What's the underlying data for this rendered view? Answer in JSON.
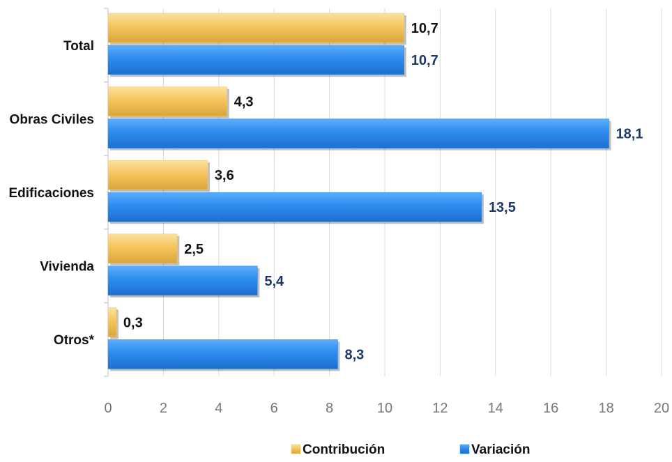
{
  "chart_data": {
    "type": "bar",
    "orientation": "horizontal",
    "categories": [
      "Total",
      "Obras Civiles",
      "Edificaciones",
      "Vivienda",
      "Otros*"
    ],
    "series": [
      {
        "name": "Contribución",
        "values": [
          10.7,
          4.3,
          3.6,
          2.5,
          0.3
        ],
        "labels": [
          "10,7",
          "4,3",
          "3,6",
          "2,5",
          "0,3"
        ],
        "color": "#F5C55C",
        "label_color": "#111111"
      },
      {
        "name": "Variación",
        "values": [
          10.7,
          18.1,
          13.5,
          5.4,
          8.3
        ],
        "labels": [
          "10,7",
          "18,1",
          "13,5",
          "5,4",
          "8,3"
        ],
        "color": "#2E8BEF",
        "label_color": "#1F3864"
      }
    ],
    "xlim": [
      0,
      20
    ],
    "xticks": [
      "0",
      "2",
      "4",
      "6",
      "8",
      "10",
      "12",
      "14",
      "16",
      "18",
      "20"
    ],
    "grid": true,
    "legend_position": "bottom"
  }
}
